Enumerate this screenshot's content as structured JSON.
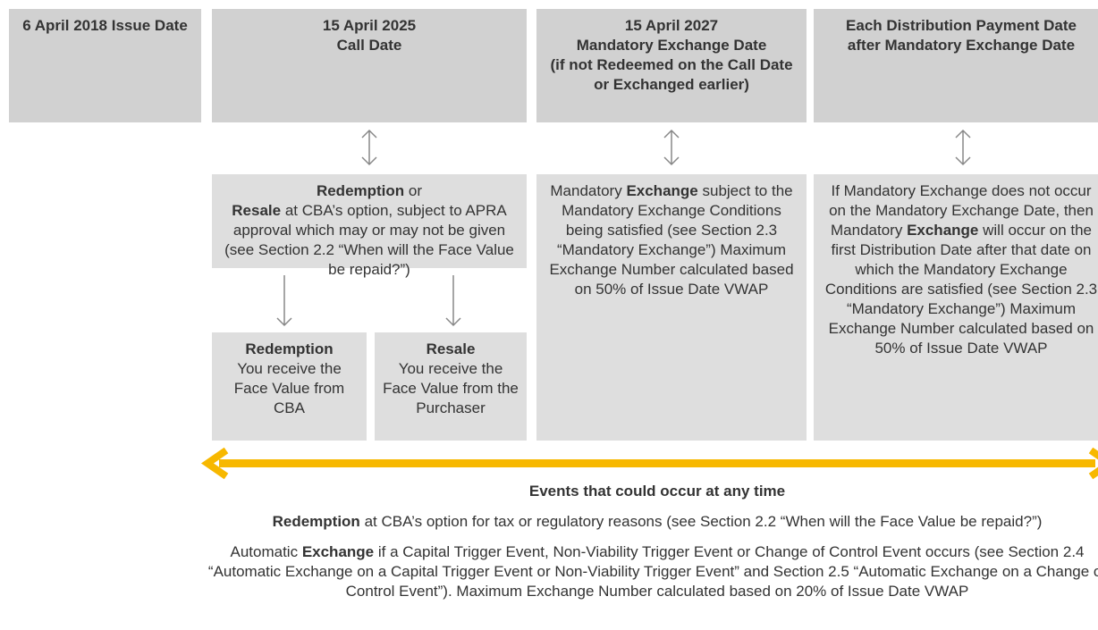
{
  "headers": [
    "6 April 2018 Issue Date",
    [
      "15 April 2025",
      "Call Date"
    ],
    [
      "15 April 2027",
      "Mandatory Exchange Date",
      "(if not Redeemed on the Call Date or Exchanged earlier)"
    ],
    "Each Distribution Payment Date after Mandatory Exchange Date"
  ],
  "call_box": [
    "Redemption",
    "or",
    "Resale",
    "at CBA’s option, subject to APRA approval which may or may not be given (see Section 2.2 “When will the Face Value be repaid?”)"
  ],
  "outcomes": [
    {
      "title": "Redemption",
      "text": "You receive the Face Value from CBA"
    },
    {
      "title": "Resale",
      "text": "You receive the Face Value from the Purchaser"
    }
  ],
  "mandatory_box": [
    "Mandatory",
    "Exchange",
    "subject to the Mandatory Exchange Conditions being satisfied (see Section 2.3 “Mandatory Exchange”) Maximum Exchange Number calculated based on 50% of Issue Date VWAP"
  ],
  "after_box": [
    "If Mandatory Exchange does not occur on the Mandatory Exchange Date, then Mandatory",
    "Exchange",
    "will occur on the first Distribution Date after that date on which the Mandatory Exchange Conditions are satisfied (see Section 2.3 “Mandatory Exchange”) Maximum Exchange Number calculated based on 50% of Issue Date VWAP"
  ],
  "events": {
    "title": "Events that could occur at any time",
    "items": [
      [
        "Redemption",
        "at CBA’s option for tax or regulatory reasons (see Section 2.2 “When will the Face Value be repaid?”)"
      ],
      [
        "Automatic",
        "Exchange",
        "if a Capital Trigger Event, Non-Viability Trigger Event or Change of Control Event occurs (see Section 2.4 “Automatic Exchange on a Capital Trigger Event or Non-Viability Trigger Event” and Section 2.5 “Automatic Exchange on a Change of Control Event”). Maximum Exchange Number calculated based on 20% of Issue Date VWAP"
      ]
    ]
  }
}
